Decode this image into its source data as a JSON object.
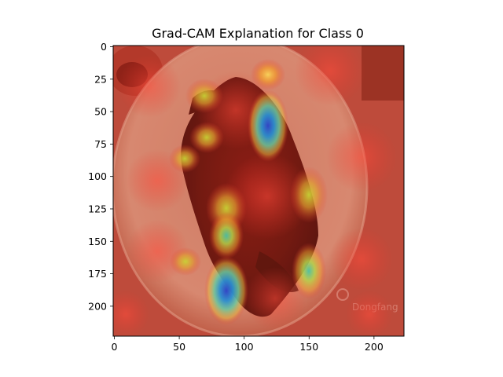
{
  "figure": {
    "title": "Grad-CAM Explanation for Class 0"
  },
  "axes": {
    "x_ticks": [
      0,
      50,
      100,
      150,
      200
    ],
    "y_ticks": [
      0,
      25,
      50,
      75,
      100,
      125,
      150,
      175,
      200
    ],
    "x_range": [
      0,
      224
    ],
    "y_range": [
      0,
      224
    ]
  },
  "image_content": {
    "subject": "plated meat dish on a white plate with Grad-CAM heatmap overlay",
    "watermark_text": "Dongfang"
  },
  "heatmap": {
    "colors": {
      "hot": "#e8382c",
      "warm": "#f39a2a",
      "mid": "#c8d336",
      "cool": "#4ec3a4",
      "cold": "#3345c4"
    },
    "hotspots": [
      {
        "id": "top-right-dot",
        "x": 120,
        "y": 22,
        "level": "warm"
      },
      {
        "id": "left-top",
        "x": 70,
        "y": 38,
        "level": "warm"
      },
      {
        "id": "blue-upper",
        "x": 119,
        "y": 63,
        "level": "cold"
      },
      {
        "id": "left-mid",
        "x": 72,
        "y": 70,
        "level": "mid"
      },
      {
        "id": "left-small",
        "x": 55,
        "y": 87,
        "level": "mid"
      },
      {
        "id": "right-mid",
        "x": 152,
        "y": 115,
        "level": "mid"
      },
      {
        "id": "center-column",
        "x": 88,
        "y": 140,
        "level": "cool"
      },
      {
        "id": "left-lower",
        "x": 55,
        "y": 167,
        "level": "mid"
      },
      {
        "id": "right-lower",
        "x": 152,
        "y": 178,
        "level": "cool"
      },
      {
        "id": "blue-lower",
        "x": 88,
        "y": 190,
        "level": "cold"
      }
    ]
  }
}
